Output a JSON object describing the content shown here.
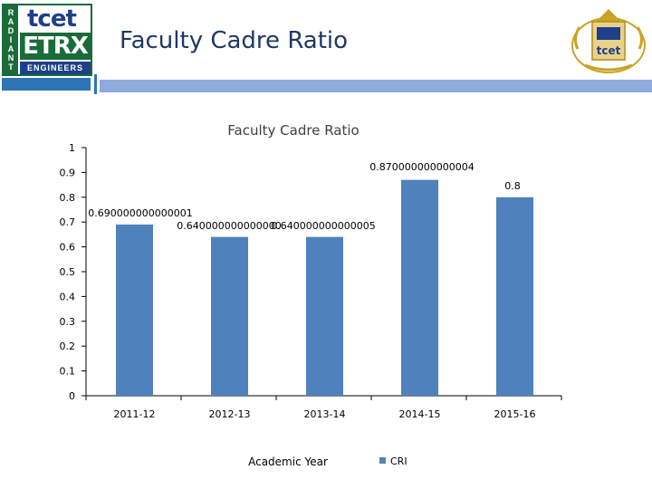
{
  "slide": {
    "title": "Faculty Cadre Ratio"
  },
  "logo_left": {
    "side_letters": "RADIANT",
    "top_text": "tcet",
    "main_text": "ETRX",
    "bottom_text": "ENGINEERS"
  },
  "logo_right": {
    "emblem_text": "tcet"
  },
  "colors": {
    "bar": "#4f81bd",
    "accent_green": "#1b6b3a",
    "accent_blue": "#2e75b6",
    "title": "#1f3864"
  },
  "chart_data": {
    "type": "bar",
    "title": "Faculty Cadre Ratio",
    "xlabel": "Academic Year",
    "ylabel": "",
    "categories": [
      "2011-12",
      "2012-13",
      "2013-14",
      "2014-15",
      "2015-16"
    ],
    "series": [
      {
        "name": "CRI",
        "values": [
          0.69,
          0.64,
          0.64,
          0.87,
          0.8
        ],
        "data_labels": [
          "0.690000000000001",
          "0.640000000000000",
          "0.640000000000005",
          "0.870000000000004",
          "0.8"
        ]
      }
    ],
    "ylim": [
      0,
      1
    ],
    "yticks": [
      "0",
      "0.1",
      "0.2",
      "0.3",
      "0.4",
      "0.5",
      "0.6",
      "0.7",
      "0.8",
      "0.9",
      "1"
    ],
    "ytick_values": [
      0,
      0.1,
      0.2,
      0.3,
      0.4,
      0.5,
      0.6,
      0.7,
      0.8,
      0.9,
      1
    ],
    "legend_position": "bottom",
    "grid": false
  }
}
